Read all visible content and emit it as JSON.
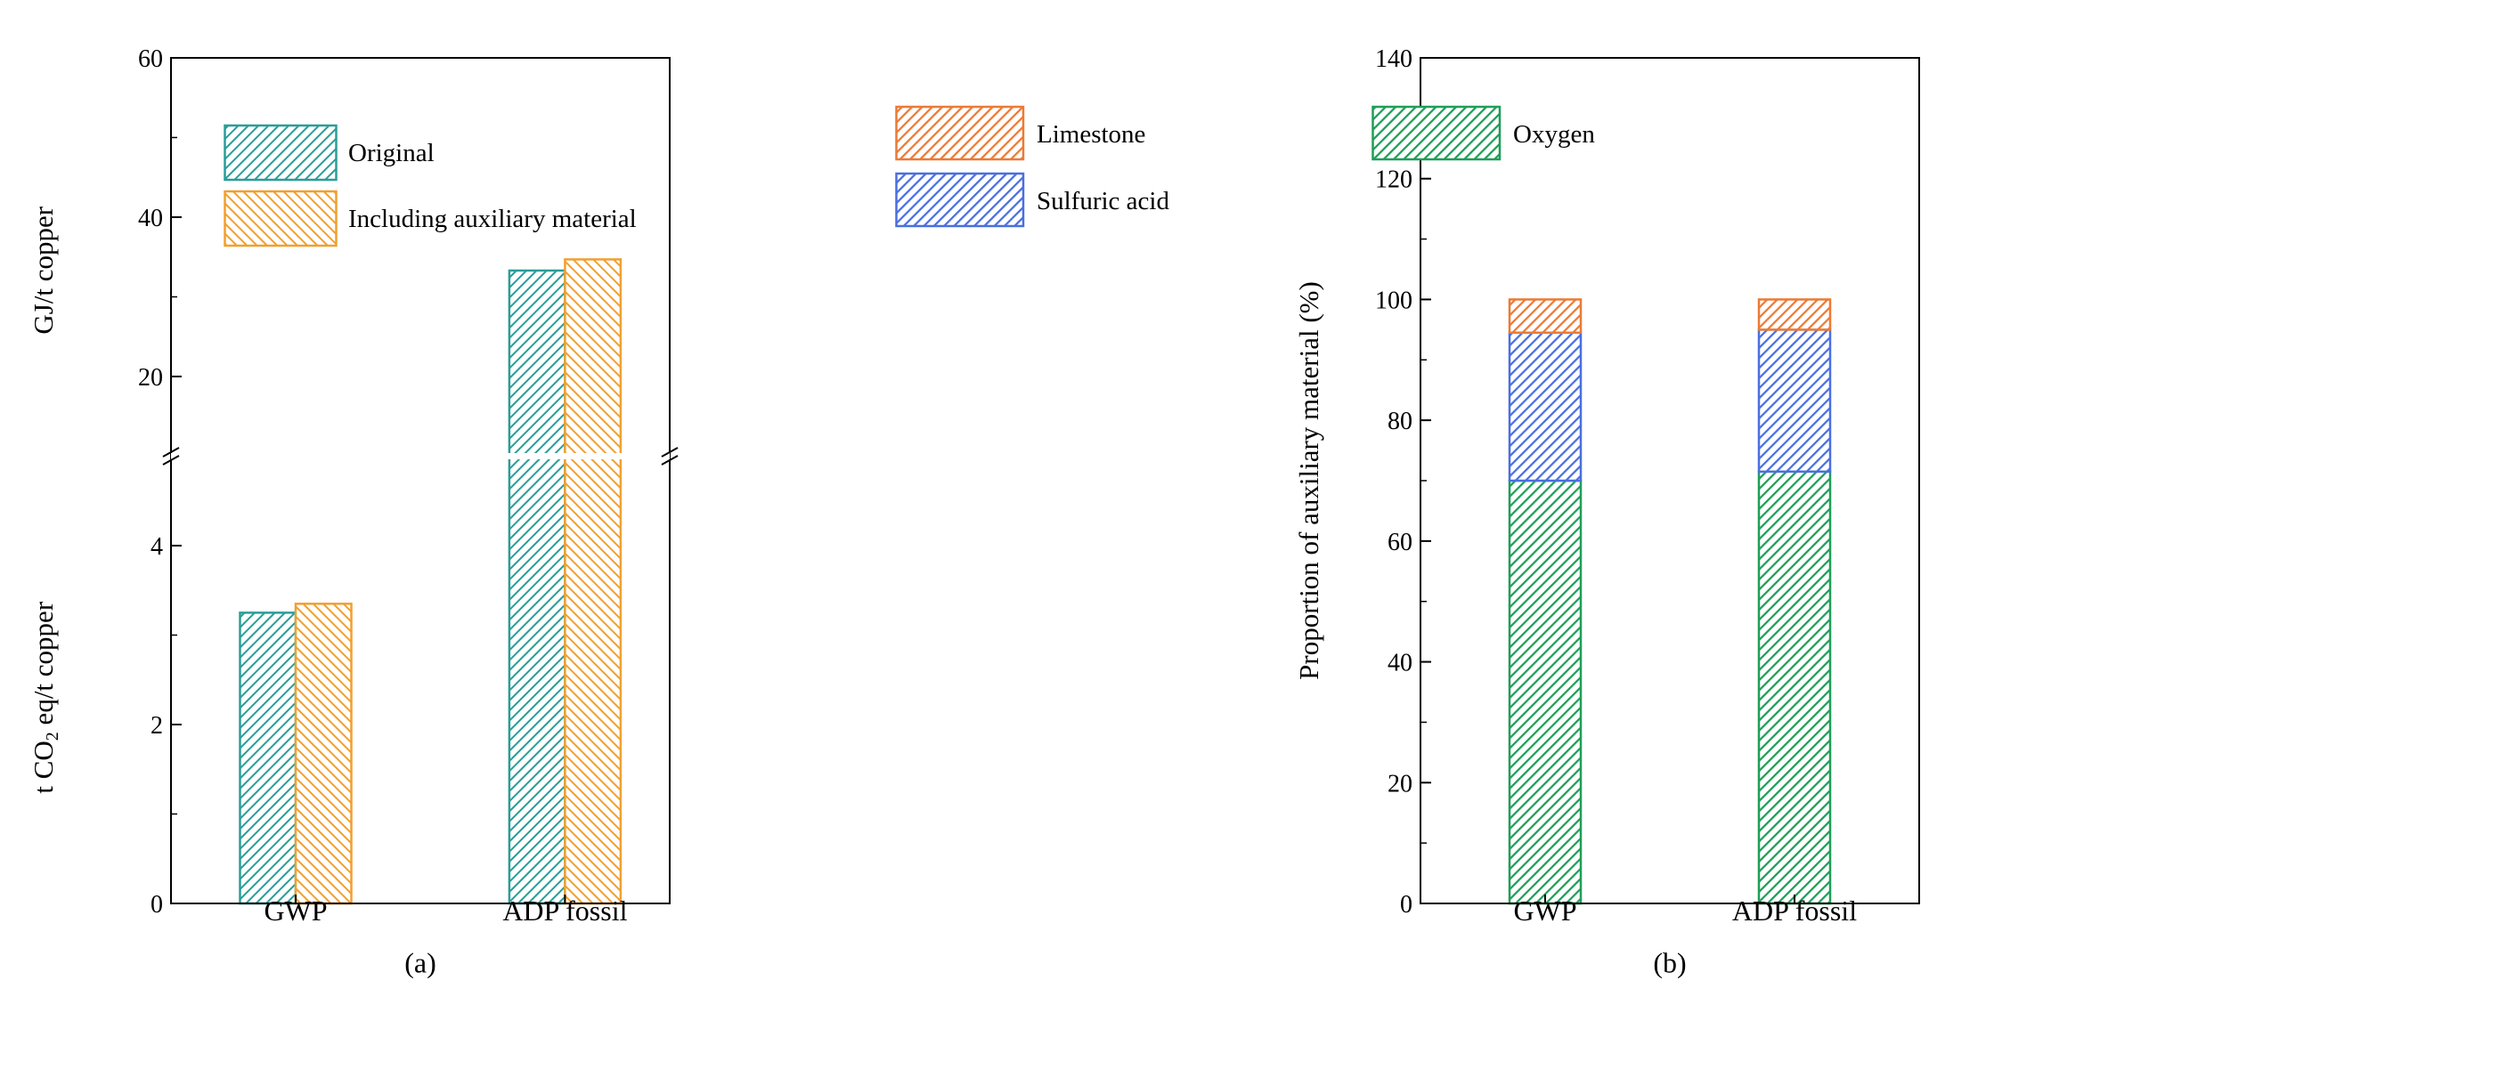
{
  "colors": {
    "original": "#2a9d98",
    "including": "#f0a030",
    "oxygen": "#1f9e58",
    "sulfuric": "#4a6fe0",
    "limestone": "#ec7a35"
  },
  "chart_data": [
    {
      "panel": "(a)",
      "type": "bar",
      "categories": [
        "GWP",
        "ADP fossil"
      ],
      "series": [
        {
          "name": "Original",
          "values": [
            3.25,
            33.3
          ]
        },
        {
          "name": "Including auxiliary material",
          "values": [
            3.35,
            34.7
          ]
        }
      ],
      "axis_break": true,
      "upper_axis": {
        "label": "GJ/t copper",
        "ylim": [
          10,
          60
        ],
        "ticks": [
          "20",
          "40",
          "60"
        ],
        "applies_to": "ADP fossil"
      },
      "lower_axis": {
        "label_prefix": "t CO",
        "label_sub": "2",
        "label_suffix": " eq/t copper",
        "ylim": [
          0,
          5
        ],
        "ticks": [
          "0",
          "2",
          "4"
        ],
        "applies_to": "GWP"
      },
      "legend_position": "top-left"
    },
    {
      "panel": "(b)",
      "type": "bar",
      "stacked": true,
      "categories": [
        "GWP",
        "ADP fossil"
      ],
      "series": [
        {
          "name": "Oxygen",
          "values": [
            70,
            71.5
          ]
        },
        {
          "name": "Sulfuric acid",
          "values": [
            24.5,
            23.5
          ]
        },
        {
          "name": "Limestone",
          "values": [
            5.5,
            5
          ]
        }
      ],
      "ylabel": "Proportion of auxiliary material (%)",
      "ylim": [
        0,
        140
      ],
      "ticks": [
        "0",
        "20",
        "40",
        "60",
        "80",
        "100",
        "120",
        "140"
      ],
      "legend_position": "top"
    }
  ]
}
